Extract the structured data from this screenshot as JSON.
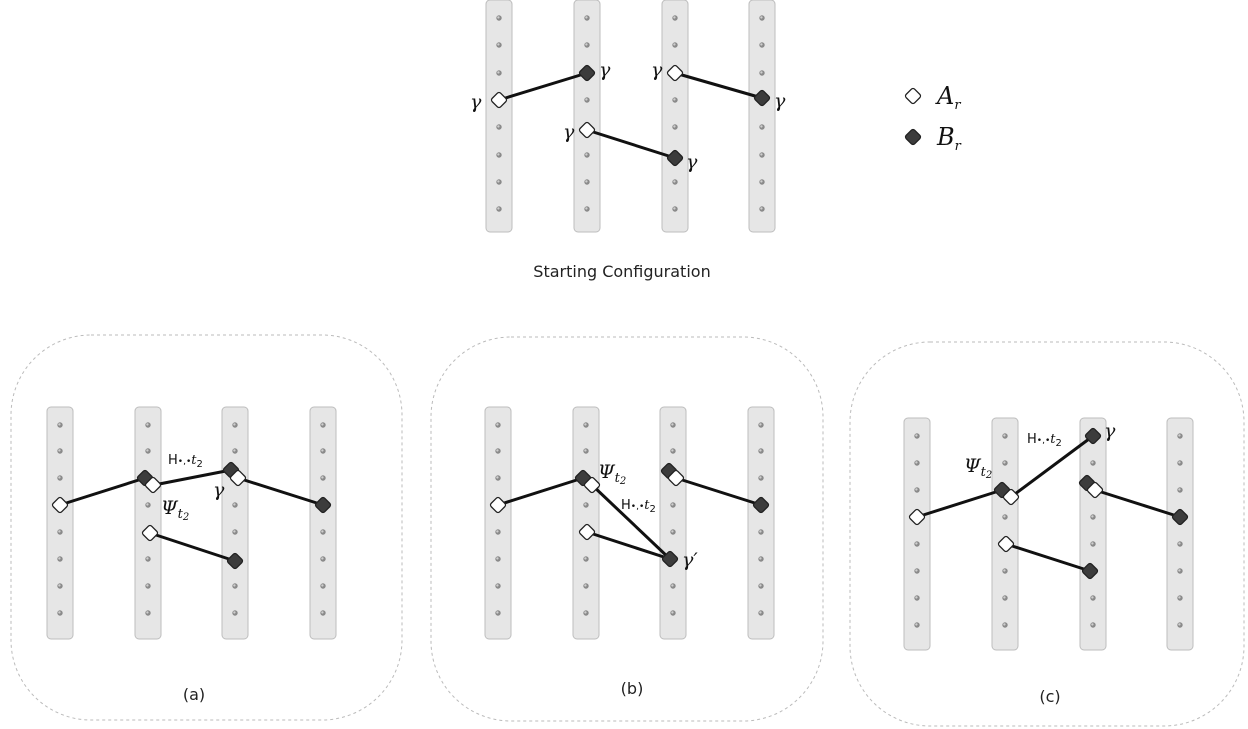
{
  "title": "Starting Configuration",
  "legend": [
    {
      "symbol": "A",
      "subscript": "r",
      "marker": "open-diamond"
    },
    {
      "symbol": "B",
      "subscript": "r",
      "marker": "filled-diamond"
    }
  ],
  "labels": {
    "gamma": "γ",
    "gamma_prime": "γ′",
    "psi": "Ψ",
    "psi_sub": "t",
    "psi_sub2": "2",
    "h_prefix": "H",
    "h_dots": "•,•",
    "h_t": "t",
    "h_2": "2"
  },
  "panels": [
    {
      "caption": "(a)"
    },
    {
      "caption": "(b)"
    },
    {
      "caption": "(c)"
    }
  ],
  "colors": {
    "column_fill": "#e6e6e6",
    "column_stroke": "#bdbdbd",
    "dot": "#8a8a8a",
    "open_node": "#ffffff",
    "filled_node": "#3c3c3c",
    "edge": "#111111",
    "panel_border": "#bbbbbb"
  }
}
